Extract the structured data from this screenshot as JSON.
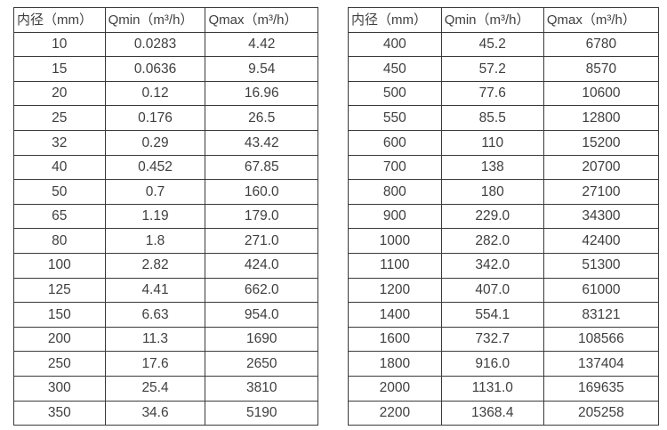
{
  "tables": [
    {
      "name": "flow-rate-table-small-diameters",
      "headers": [
        "内径（mm）",
        "Qmin（m³/h）",
        "Qmax（m³/h）"
      ],
      "rows": [
        [
          "10",
          "0.0283",
          "4.42"
        ],
        [
          "15",
          "0.0636",
          "9.54"
        ],
        [
          "20",
          "0.12",
          "16.96"
        ],
        [
          "25",
          "0.176",
          "26.5"
        ],
        [
          "32",
          "0.29",
          "43.42"
        ],
        [
          "40",
          "0.452",
          "67.85"
        ],
        [
          "50",
          "0.7",
          "160.0"
        ],
        [
          "65",
          "1.19",
          "179.0"
        ],
        [
          "80",
          "1.8",
          "271.0"
        ],
        [
          "100",
          "2.82",
          "424.0"
        ],
        [
          "125",
          "4.41",
          "662.0"
        ],
        [
          "150",
          "6.63",
          "954.0"
        ],
        [
          "200",
          "11.3",
          "1690"
        ],
        [
          "250",
          "17.6",
          "2650"
        ],
        [
          "300",
          "25.4",
          "3810"
        ],
        [
          "350",
          "34.6",
          "5190"
        ]
      ]
    },
    {
      "name": "flow-rate-table-large-diameters",
      "headers": [
        "内径（mm）",
        "Qmin（m³/h）",
        "Qmax（m³/h）"
      ],
      "rows": [
        [
          "400",
          "45.2",
          "6780"
        ],
        [
          "450",
          "57.2",
          "8570"
        ],
        [
          "500",
          "77.6",
          "10600"
        ],
        [
          "550",
          "85.5",
          "12800"
        ],
        [
          "600",
          "110",
          "15200"
        ],
        [
          "700",
          "138",
          "20700"
        ],
        [
          "800",
          "180",
          "27100"
        ],
        [
          "900",
          "229.0",
          "34300"
        ],
        [
          "1000",
          "282.0",
          "42400"
        ],
        [
          "1100",
          "342.0",
          "51300"
        ],
        [
          "1200",
          "407.0",
          "61000"
        ],
        [
          "1400",
          "554.1",
          "83121"
        ],
        [
          "1600",
          "732.7",
          "108566"
        ],
        [
          "1800",
          "916.0",
          "137404"
        ],
        [
          "2000",
          "1131.0",
          "169635"
        ],
        [
          "2200",
          "1368.4",
          "205258"
        ]
      ]
    }
  ],
  "colors": {
    "border": "#3a3a3a",
    "text": "#3f3f3f",
    "background": "#ffffff"
  }
}
